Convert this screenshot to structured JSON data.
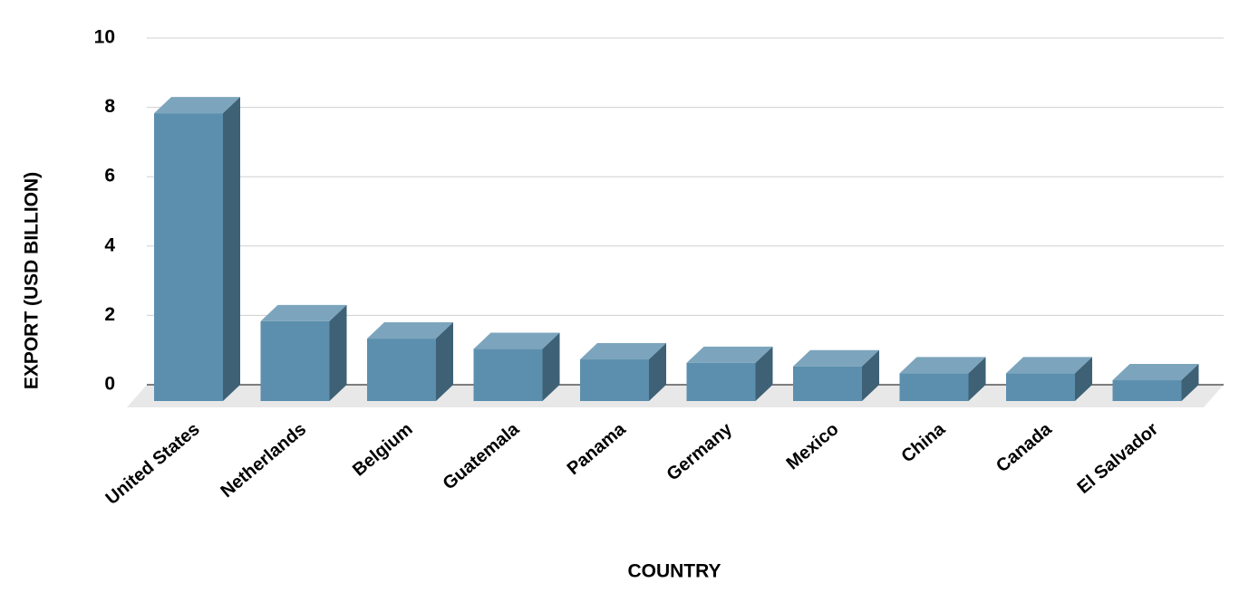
{
  "chart_data": {
    "type": "bar3d",
    "x_label": "COUNTRY",
    "y_label": "EXPORT (USD BILLION)",
    "categories": [
      "United States",
      "Netherlands",
      "Belgium",
      "Guatemala",
      "Panama",
      "Germany",
      "Mexico",
      "China",
      "Canada",
      "El Salvador"
    ],
    "values": [
      8.3,
      2.3,
      1.8,
      1.5,
      1.2,
      1.1,
      1.0,
      0.8,
      0.8,
      0.6
    ],
    "color": "#5b8fad",
    "ylim": [
      0,
      10
    ],
    "yticks": [
      0,
      2,
      4,
      6,
      8,
      10
    ],
    "grid": true
  }
}
